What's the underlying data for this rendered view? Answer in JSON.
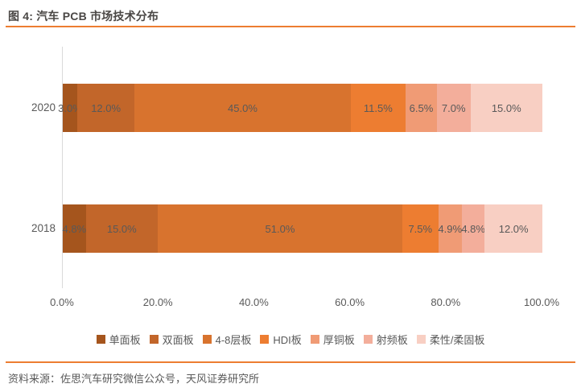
{
  "title": "图 4: 汽车 PCB 市场技术分布",
  "footer": {
    "source": "资料来源：佐思汽车研究微信公众号，天风证券研究所"
  },
  "colors": {
    "accent_line": "#ed7d31",
    "title_text": "#4a4745",
    "label_text": "#595959",
    "axis_line": "#d9d9d9",
    "background": "#ffffff"
  },
  "chart_data": {
    "type": "bar",
    "orientation": "horizontal",
    "stacked": true,
    "title": "汽车 PCB 市场技术分布",
    "categories": [
      "2020",
      "2018"
    ],
    "series": [
      {
        "name": "单面板",
        "color": "#a5551d",
        "values": [
          3.0,
          4.8
        ]
      },
      {
        "name": "双面板",
        "color": "#c2662a",
        "values": [
          12.0,
          15.0
        ]
      },
      {
        "name": "4-8层板",
        "color": "#d8732e",
        "values": [
          45.0,
          51.0
        ]
      },
      {
        "name": "HDI板",
        "color": "#ed7d31",
        "values": [
          11.5,
          7.5
        ]
      },
      {
        "name": "厚铜板",
        "color": "#f09b75",
        "values": [
          6.5,
          4.9
        ]
      },
      {
        "name": "射频板",
        "color": "#f3ae9b",
        "values": [
          7.0,
          4.8
        ]
      },
      {
        "name": "柔性/柔固板",
        "color": "#f8cfc3",
        "values": [
          15.0,
          12.0
        ]
      }
    ],
    "data_labels": {
      "2020": [
        "3.0%",
        "12.0%",
        "45.0%",
        "11.5%",
        "6.5%",
        "7.0%",
        "15.0%"
      ],
      "2018": [
        "4.8%",
        "15.0%",
        "51.0%",
        "7.5%",
        "4.9%",
        "4.8%",
        "12.0%"
      ]
    },
    "x_axis": {
      "min": 0,
      "max": 100,
      "ticks": [
        "0.0%",
        "20.0%",
        "40.0%",
        "60.0%",
        "80.0%",
        "100.0%"
      ]
    },
    "grid": false,
    "legend_position": "bottom"
  }
}
